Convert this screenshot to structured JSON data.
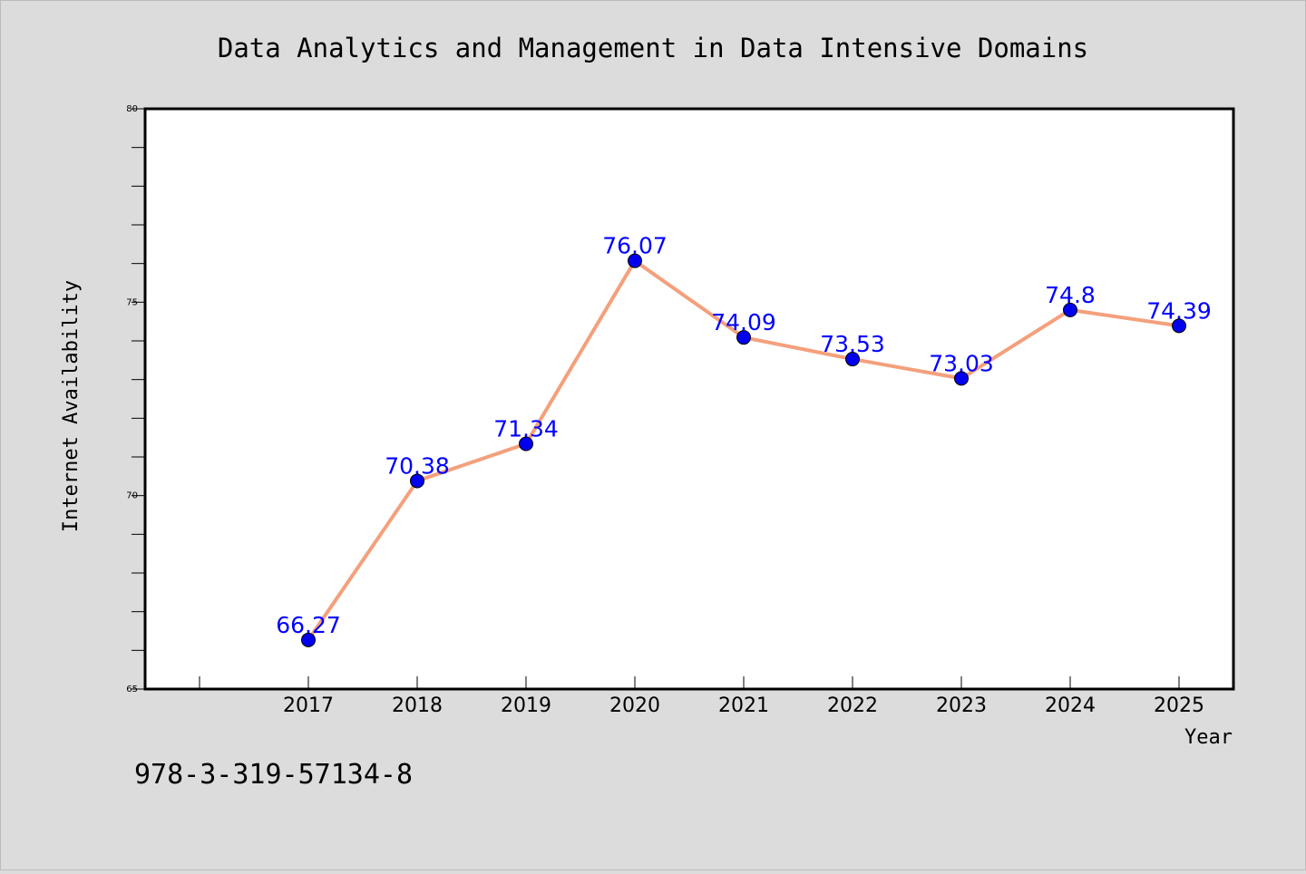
{
  "chart_data": {
    "type": "line",
    "title": "Data Analytics and Management in Data Intensive Domains",
    "xlabel": "Year",
    "ylabel": "Internet Availability",
    "categories": [
      "2017",
      "2018",
      "2019",
      "2020",
      "2021",
      "2022",
      "2023",
      "2024",
      "2025"
    ],
    "series": [
      {
        "values": [
          66.27,
          70.38,
          71.34,
          76.07,
          74.09,
          73.53,
          73.03,
          74.8,
          74.39
        ],
        "labels": [
          "66.27",
          "70.38",
          "71.34",
          "76.07",
          "74.09",
          "73.53",
          "73.03",
          "74.8",
          "74.39"
        ],
        "line_color": "#f4a07c",
        "marker_color": "#0000ee",
        "label_color": "#0000ff"
      }
    ],
    "ylim": [
      65,
      80
    ],
    "y_ticks": [
      "65",
      "70",
      "75",
      "80"
    ],
    "grid": false,
    "legend": "none"
  },
  "footnote": "978-3-319-57134-8",
  "colors": {
    "background": "#dcdcdc",
    "plot_background": "#ffffff",
    "axis": "#000000"
  }
}
